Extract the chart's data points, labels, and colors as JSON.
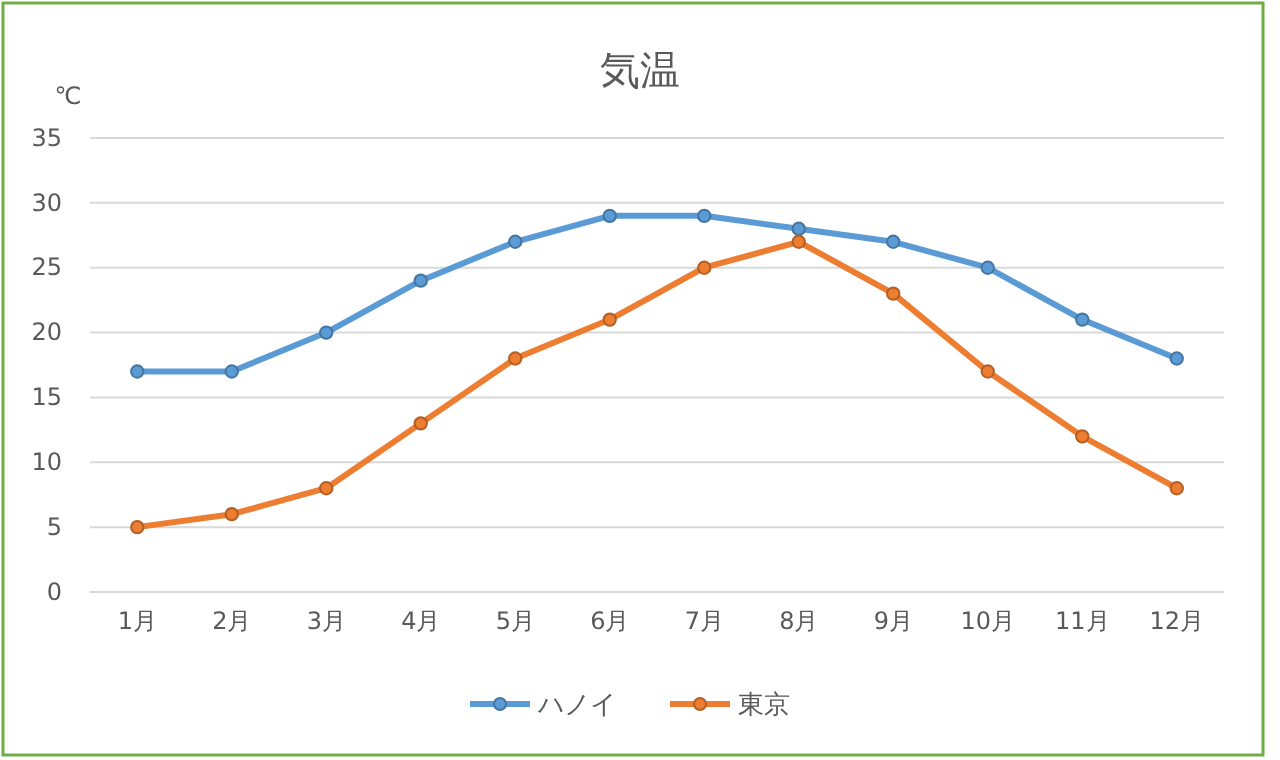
{
  "chart_data": {
    "type": "line",
    "title": "気温",
    "ylabel": "℃",
    "categories": [
      "1月",
      "2月",
      "3月",
      "4月",
      "5月",
      "6月",
      "7月",
      "8月",
      "9月",
      "10月",
      "11月",
      "12月"
    ],
    "series": [
      {
        "name": "ハノイ",
        "color": "#5b9bd5",
        "values": [
          17,
          17,
          20,
          24,
          27,
          29,
          29,
          28,
          27,
          25,
          21,
          18
        ]
      },
      {
        "name": "東京",
        "color": "#ed7d31",
        "values": [
          5,
          6,
          8,
          13,
          18,
          21,
          25,
          27,
          23,
          17,
          12,
          8
        ]
      }
    ],
    "ylim": [
      0,
      35
    ],
    "yticks": [
      0,
      5,
      10,
      15,
      20,
      25,
      30,
      35
    ],
    "grid": "y",
    "legend": "bottom",
    "marker": "circle",
    "line_style": "solid"
  }
}
